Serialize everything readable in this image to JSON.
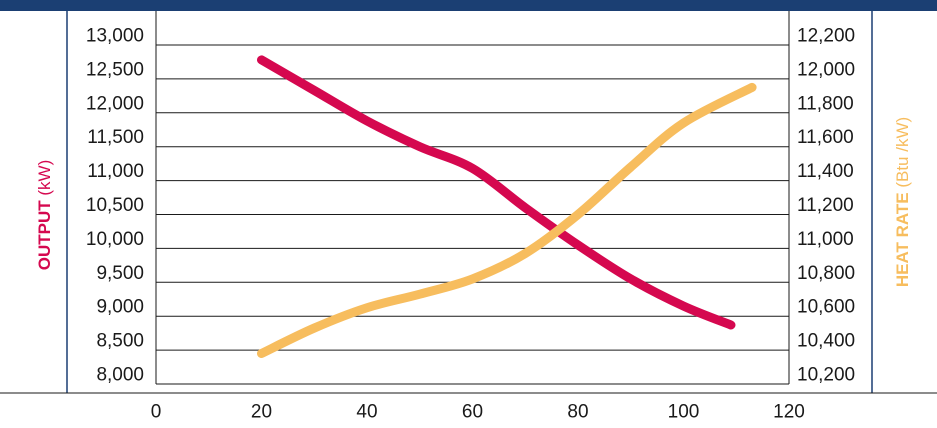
{
  "colors": {
    "banner": "#1b3f73",
    "output": "#d5084f",
    "heat_rate": "#f7bd5e",
    "divider": "#1b3f73",
    "grid": "#1a1a1a"
  },
  "chart_data": {
    "type": "line",
    "title": "",
    "xlabel": "",
    "xlim": [
      0,
      120
    ],
    "x_ticks": [
      0,
      20,
      40,
      60,
      80,
      100,
      120
    ],
    "x_tick_labels": [
      "0",
      "20",
      "40",
      "60",
      "80",
      "100",
      "120"
    ],
    "y_left": {
      "label_bold": "OUTPUT",
      "label_unit": " (kW)",
      "ylim": [
        8000,
        13000
      ],
      "ticks": [
        8000,
        8500,
        9000,
        9500,
        10000,
        10500,
        11000,
        11500,
        12000,
        12500,
        13000
      ],
      "tick_labels": [
        "8,000",
        "8,500",
        "9,000",
        "9,500",
        "10,000",
        "10,500",
        "11,000",
        "11,500",
        "12,000",
        "12,500",
        "13,000"
      ]
    },
    "y_right": {
      "label_bold": "HEAT RATE",
      "label_unit": " (Btu /kW)",
      "ylim": [
        10200,
        12200
      ],
      "ticks": [
        10200,
        10400,
        10600,
        10800,
        11000,
        11200,
        11400,
        11600,
        11800,
        12000,
        12200
      ],
      "tick_labels": [
        "10,200",
        "10,400",
        "10,600",
        "10,800",
        "11,000",
        "11,200",
        "11,400",
        "11,600",
        "11,800",
        "12,000",
        "12,200"
      ]
    },
    "grid": "horizontal",
    "series": [
      {
        "axis": "left",
        "color": "#d5084f",
        "x": [
          20,
          30,
          40,
          50,
          60,
          70,
          80,
          90,
          100,
          109
        ],
        "y": [
          12780,
          12330,
          11880,
          11500,
          11180,
          10600,
          10050,
          9550,
          9150,
          8870
        ]
      },
      {
        "axis": "right",
        "color": "#f7bd5e",
        "x": [
          20,
          30,
          40,
          50,
          60,
          70,
          80,
          90,
          100,
          113
        ],
        "y": [
          10380,
          10530,
          10650,
          10730,
          10820,
          10970,
          11200,
          11480,
          11740,
          11950
        ]
      }
    ]
  }
}
